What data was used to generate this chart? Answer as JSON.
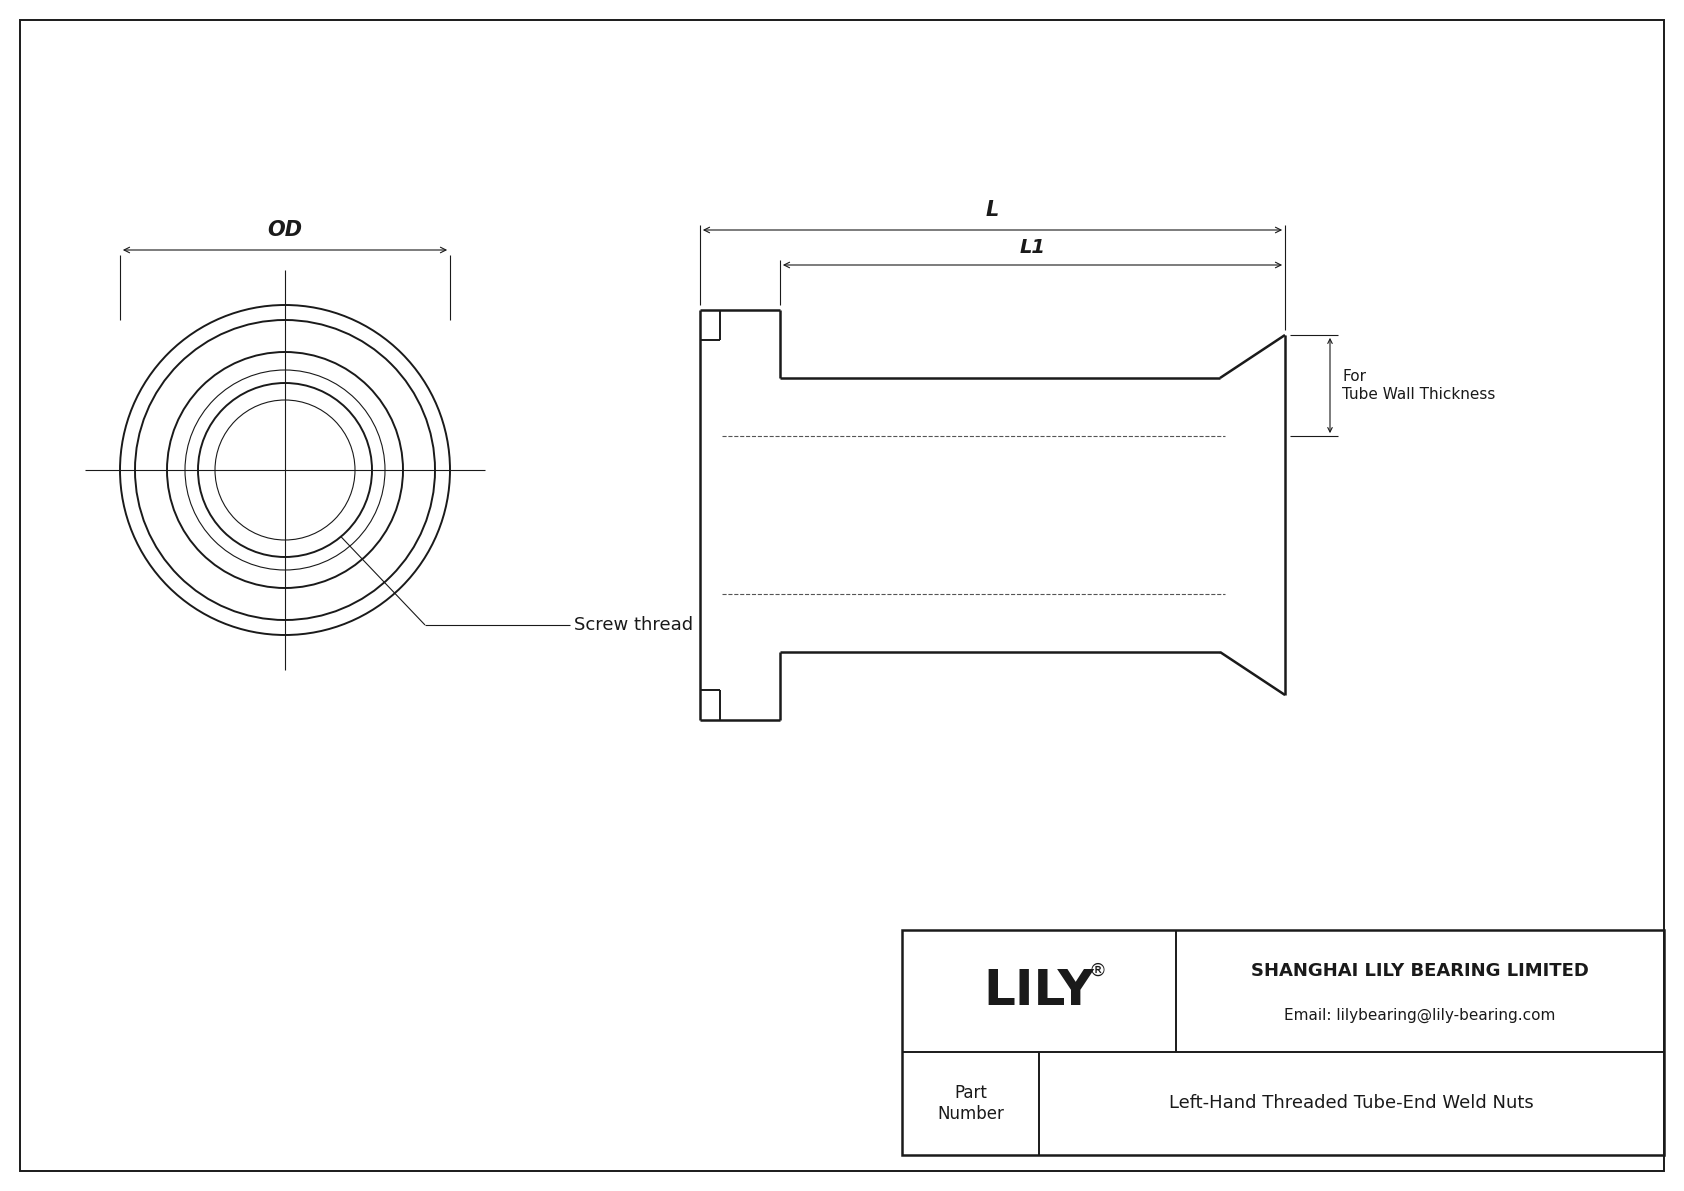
{
  "bg_color": "#ffffff",
  "line_color": "#1a1a1a",
  "title": "Left-Hand Threaded Tube-End Weld Nuts",
  "company": "SHANGHAI LILY BEARING LIMITED",
  "email": "Email: lilybearing@lily-bearing.com",
  "part_label": "Part\nNumber",
  "lily_text": "LILY",
  "registered": "®",
  "screw_thread_label": "Screw thread",
  "od_label": "OD",
  "l_label": "L",
  "l1_label": "L1",
  "for_label": "For\nTube Wall Thickness",
  "fig_width": 16.84,
  "fig_height": 11.91
}
